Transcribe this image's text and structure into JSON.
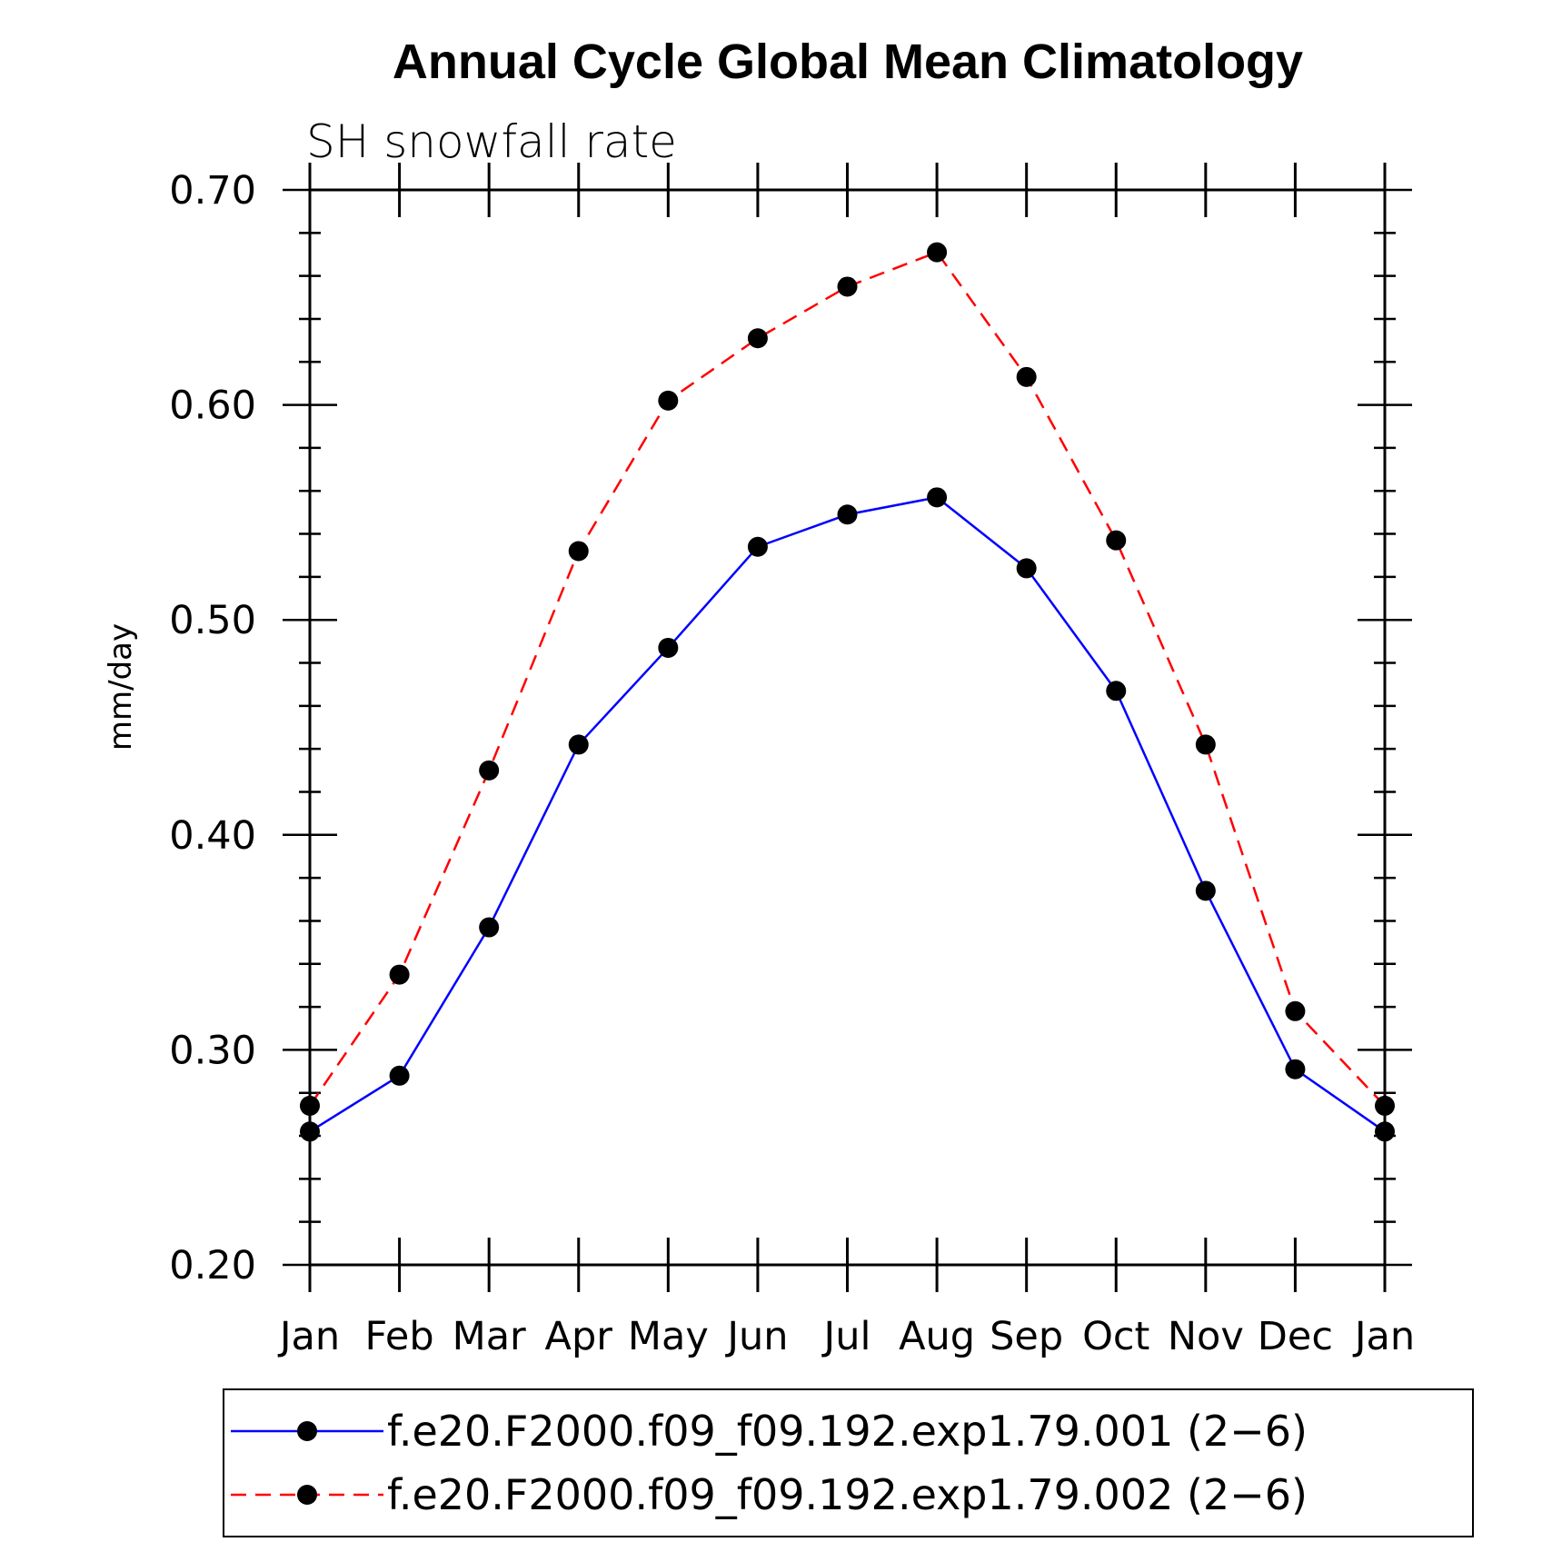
{
  "chart_data": {
    "type": "line",
    "title": "Annual Cycle Global Mean Climatology",
    "subtitle": "SH snowfall rate",
    "ylabel": "mm/day",
    "xlabel": "",
    "categories": [
      "Jan",
      "Feb",
      "Mar",
      "Apr",
      "May",
      "Jun",
      "Jul",
      "Aug",
      "Sep",
      "Oct",
      "Nov",
      "Dec",
      "Jan"
    ],
    "ylim": [
      0.2,
      0.7
    ],
    "yticks": [
      "0.20",
      "0.30",
      "0.40",
      "0.50",
      "0.60",
      "0.70"
    ],
    "grid": false,
    "legend_position": "bottom",
    "series": [
      {
        "name": "f.e20.F2000.f09_f09.192.exp1.79.001 (2−6)",
        "color": "#0000ff",
        "line_style": "solid",
        "marker": "filled-circle",
        "values": [
          0.262,
          0.288,
          0.357,
          0.442,
          0.487,
          0.534,
          0.549,
          0.557,
          0.524,
          0.467,
          0.374,
          0.291,
          0.262
        ]
      },
      {
        "name": "f.e20.F2000.f09_f09.192.exp1.79.002 (2−6)",
        "color": "#ff0000",
        "line_style": "dashed",
        "marker": "filled-circle",
        "values": [
          0.274,
          0.335,
          0.43,
          0.532,
          0.602,
          0.631,
          0.655,
          0.671,
          0.613,
          0.537,
          0.442,
          0.318,
          0.274
        ]
      }
    ]
  }
}
